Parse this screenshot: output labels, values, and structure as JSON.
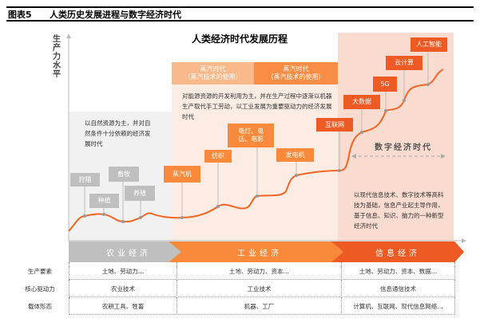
{
  "header": {
    "figure_no": "图表5",
    "figure_title": "人类历史发展进程与数字经济时代"
  },
  "chart": {
    "title": "人类经济时代发展历程",
    "y_axis_label": "生产力水平"
  },
  "eras": [
    {
      "name": "农业经济",
      "description": "以自然资源为主，并对自然条件十分依赖的经济发展时代",
      "color": "#bfbfbf"
    },
    {
      "name": "工业经济",
      "description": "对能源资源的开发利用为主，并在生产过程中逐渐以机器生产取代手工劳动，以工业发展为重要驱动力的经济发展时代",
      "color": "#f98a3b"
    },
    {
      "name": "信息经济",
      "description": "以现代信息技术、数字技术等高科技为基础，信息产业起主导作用，基于信息、知识、脑力的一种新型经济时代",
      "color": "#ee5a24"
    }
  ],
  "sub_eras": [
    {
      "line1": "蒸汽时代",
      "line2": "（蒸汽技术的使用）"
    },
    {
      "line1": "蒸汽时代",
      "line2": "（蒸汽技术的使用）"
    }
  ],
  "digital_era_label": "数字经济时代",
  "milestones": [
    "狩猎",
    "种植",
    "畜牧",
    "养殖",
    "蒸汽机",
    "纺织",
    "电灯、电话、电影",
    "发电机",
    "互联网",
    "大数据",
    "5G",
    "云计算",
    "人工智能"
  ],
  "table": {
    "rows": [
      {
        "label": "生产要素",
        "values": [
          "土地、劳动力…",
          "土地、劳动力、资本…",
          "土地、劳动力、资本、数据…"
        ]
      },
      {
        "label": "核心驱动力",
        "values": [
          "农业技术",
          "工业技术",
          "信息通信技术"
        ]
      },
      {
        "label": "载体形态",
        "values": [
          "农耕工具、牲畜",
          "机器、工厂",
          "计算机、互联网、现代信息网络…"
        ]
      }
    ]
  }
}
